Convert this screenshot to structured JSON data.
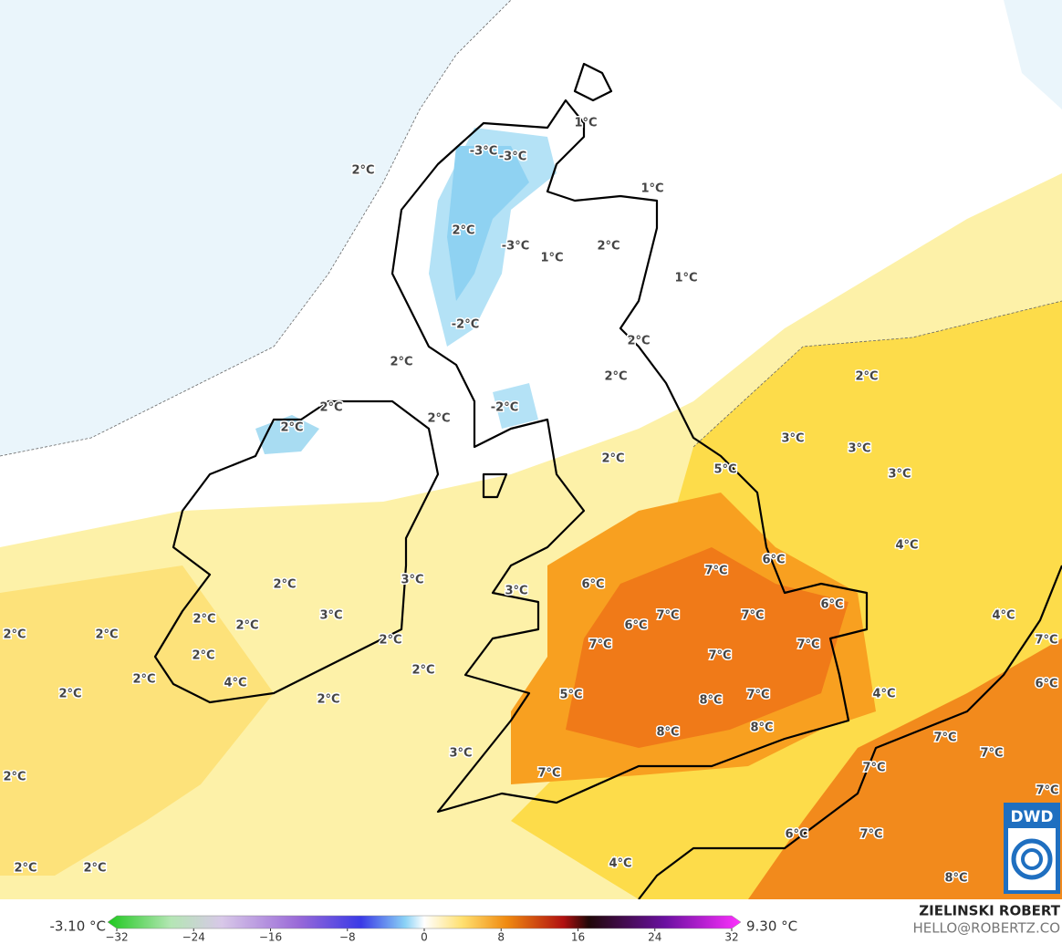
{
  "map": {
    "labels": [
      "1°C",
      "-3°C",
      "-3°C",
      "2°C",
      "1°C",
      "2°C",
      "-3°C",
      "2°C",
      "1°C",
      "1°C",
      "-2°C",
      "2°C",
      "2°C",
      "2°C",
      "2°C",
      "-2°C",
      "2°C",
      "2°C",
      "2°C",
      "3°C",
      "3°C",
      "2°C",
      "5°C",
      "3°C",
      "4°C",
      "6°C",
      "7°C",
      "6°C",
      "3°C",
      "2°C",
      "3°C",
      "6°C",
      "3°C",
      "4°C",
      "2°C",
      "2°C",
      "7°C",
      "7°C",
      "6°C",
      "2°C",
      "2°C",
      "2°C",
      "7°C",
      "7°C",
      "7°C",
      "2°C",
      "7°C",
      "2°C",
      "2°C",
      "4°C",
      "6°C",
      "2°C",
      "5°C",
      "2°C",
      "4°C",
      "7°C",
      "8°C",
      "8°C",
      "8°C",
      "7°C",
      "3°C",
      "7°C",
      "7°C",
      "7°C",
      "2°C",
      "7°C",
      "6°C",
      "7°C",
      "2°C",
      "2°C",
      "4°C",
      "8°C"
    ],
    "colorbar": {
      "min_label": "-3.10 °C",
      "max_label": "9.30 °C",
      "ticks": [
        {
          "value": -32,
          "label": "−32"
        },
        {
          "value": -24,
          "label": "−24"
        },
        {
          "value": -16,
          "label": "−16"
        },
        {
          "value": -8,
          "label": "−8"
        },
        0,
        8,
        16,
        24,
        32
      ],
      "lim": [
        -32,
        32
      ]
    },
    "credit": {
      "name": "ZIELINSKI ROBERT",
      "email": "HELLO@ROBERTZ.CO"
    },
    "logo": "DWD"
  }
}
